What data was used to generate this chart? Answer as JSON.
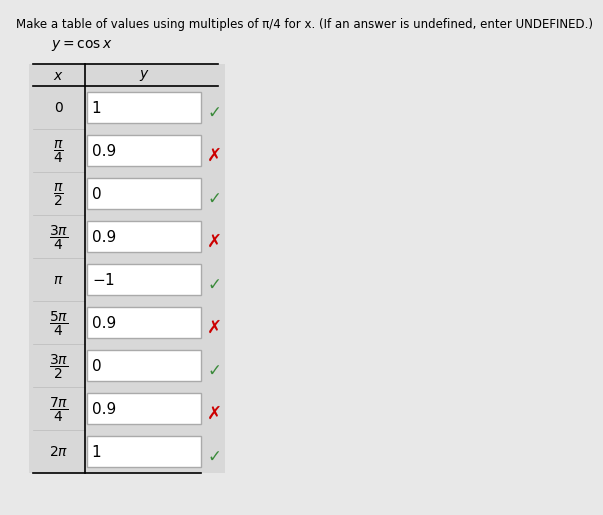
{
  "title": "Make a table of values using multiples of π/4 for x. (If an answer is undefined, enter UNDEFINED.)",
  "subtitle": "y = cos x",
  "rows": [
    {
      "y_value": "1",
      "correct": true
    },
    {
      "y_value": "0.9",
      "correct": false
    },
    {
      "y_value": "0",
      "correct": true
    },
    {
      "y_value": "0.9",
      "correct": false
    },
    {
      "y_value": "-1",
      "correct": true
    },
    {
      "y_value": "0.9",
      "correct": false
    },
    {
      "y_value": "0",
      "correct": true
    },
    {
      "y_value": "0.9",
      "correct": false
    },
    {
      "y_value": "1",
      "correct": true
    }
  ],
  "page_bg": "#e8e8e8",
  "box_fill": "#ffffff",
  "box_border": "#aaaaaa",
  "check_color": "#3a8a3a",
  "cross_color": "#cc0000",
  "title_fontsize": 8.5,
  "subtitle_fontsize": 10,
  "header_fontsize": 10,
  "value_fontsize": 11,
  "x_label_fontsize": 10
}
